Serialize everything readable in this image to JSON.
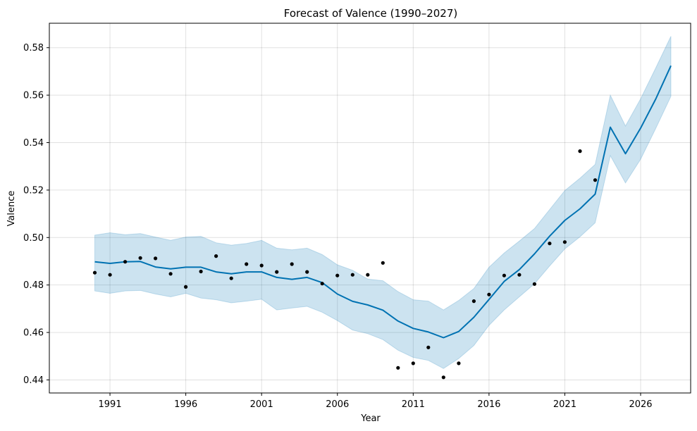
{
  "chart_data": {
    "type": "line",
    "title": "Forecast of Valence (1990–2027)",
    "xlabel": "Year",
    "ylabel": "Valence",
    "xlim": [
      1987.0,
      2029.3
    ],
    "ylim": [
      0.4345,
      0.5903
    ],
    "x_ticks": [
      1991,
      1996,
      2001,
      2006,
      2011,
      2016,
      2021,
      2026
    ],
    "y_ticks": [
      0.44,
      0.46,
      0.48,
      0.5,
      0.52,
      0.54,
      0.56,
      0.58
    ],
    "x_tick_labels": [
      "1991",
      "1996",
      "2001",
      "2006",
      "2011",
      "2016",
      "2021",
      "2026"
    ],
    "y_tick_labels": [
      "0.44",
      "0.46",
      "0.48",
      "0.50",
      "0.52",
      "0.54",
      "0.56",
      "0.58"
    ],
    "grid": true,
    "colors": {
      "forecast": "#0072b2",
      "interval": "#0072b2",
      "observed": "#000000"
    },
    "series": [
      {
        "kind": "forecast",
        "x": [
          1990,
          1991,
          1992,
          1993,
          1994,
          1995,
          1996,
          1997,
          1998,
          1999,
          2000,
          2001,
          2002,
          2003,
          2004,
          2005,
          2006,
          2007,
          2008,
          2009,
          2010,
          2011,
          2012,
          2013,
          2014,
          2015,
          2016,
          2017,
          2018,
          2019,
          2020,
          2021,
          2022,
          2023,
          2024,
          2025,
          2026,
          2027,
          2028
        ],
        "y": [
          0.4898,
          0.4891,
          0.4898,
          0.4899,
          0.4876,
          0.4868,
          0.4875,
          0.4875,
          0.4855,
          0.4847,
          0.4855,
          0.4855,
          0.4832,
          0.4824,
          0.4832,
          0.481,
          0.4762,
          0.4731,
          0.4716,
          0.4694,
          0.4648,
          0.4617,
          0.4602,
          0.4578,
          0.4604,
          0.4664,
          0.4739,
          0.4815,
          0.4865,
          0.4931,
          0.5006,
          0.5072,
          0.5121,
          0.5183,
          0.5465,
          0.5353,
          0.5461,
          0.5584,
          0.5724
        ],
        "lower": [
          0.4775,
          0.4765,
          0.4775,
          0.4777,
          0.4762,
          0.475,
          0.4765,
          0.4745,
          0.4738,
          0.4725,
          0.4732,
          0.474,
          0.4695,
          0.4703,
          0.471,
          0.4685,
          0.465,
          0.461,
          0.4595,
          0.457,
          0.4525,
          0.4495,
          0.4482,
          0.4448,
          0.449,
          0.4545,
          0.463,
          0.4695,
          0.475,
          0.4805,
          0.488,
          0.4952,
          0.5003,
          0.5062,
          0.5345,
          0.523,
          0.533,
          0.546,
          0.5595
        ],
        "upper": [
          0.501,
          0.502,
          0.5012,
          0.5017,
          0.5002,
          0.4988,
          0.5002,
          0.5005,
          0.4978,
          0.4968,
          0.4975,
          0.4988,
          0.4955,
          0.4948,
          0.4955,
          0.4928,
          0.4885,
          0.4862,
          0.4825,
          0.4818,
          0.4772,
          0.4738,
          0.4732,
          0.4695,
          0.4735,
          0.4785,
          0.4875,
          0.4935,
          0.4985,
          0.5038,
          0.5118,
          0.5198,
          0.525,
          0.5308,
          0.56,
          0.547,
          0.5585,
          0.5715,
          0.5848
        ]
      },
      {
        "kind": "observed",
        "x": [
          1990,
          1991,
          1992,
          1993,
          1994,
          1995,
          1996,
          1997,
          1998,
          1999,
          2000,
          2001,
          2002,
          2003,
          2004,
          2005,
          2006,
          2007,
          2008,
          2009,
          2010,
          2011,
          2012,
          2013,
          2014,
          2015,
          2016,
          2017,
          2018,
          2019,
          2020,
          2021,
          2022,
          2023
        ],
        "y": [
          0.4852,
          0.4843,
          0.4898,
          0.4914,
          0.4912,
          0.4847,
          0.4792,
          0.4857,
          0.4922,
          0.4828,
          0.4888,
          0.4882,
          0.4855,
          0.4888,
          0.4855,
          0.4806,
          0.484,
          0.4843,
          0.4843,
          0.4893,
          0.4451,
          0.447,
          0.4537,
          0.4411,
          0.447,
          0.4732,
          0.476,
          0.484,
          0.4843,
          0.4804,
          0.4975,
          0.4981,
          0.5364,
          0.5242
        ]
      }
    ]
  }
}
